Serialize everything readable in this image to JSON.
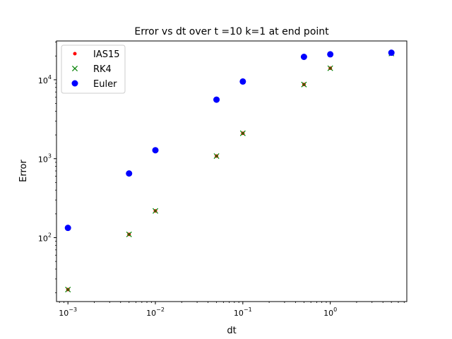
{
  "chart_data": {
    "type": "scatter",
    "title": "Error vs dt over t =10 k=1 at end point",
    "xlabel": "dt",
    "ylabel": "Error",
    "xscale": "log",
    "yscale": "log",
    "xlim": [
      0.00074,
      7.5
    ],
    "ylim": [
      15.5,
      31000
    ],
    "grid": false,
    "legend_position": "top-left",
    "x_ticks": [
      {
        "value": 0.001,
        "mantissa": "10",
        "exponent": "−3"
      },
      {
        "value": 0.01,
        "mantissa": "10",
        "exponent": "−2"
      },
      {
        "value": 0.1,
        "mantissa": "10",
        "exponent": "−1"
      },
      {
        "value": 1,
        "mantissa": "10",
        "exponent": "0"
      }
    ],
    "y_ticks": [
      {
        "value": 100,
        "mantissa": "10",
        "exponent": "2"
      },
      {
        "value": 1000,
        "mantissa": "10",
        "exponent": "3"
      },
      {
        "value": 10000,
        "mantissa": "10",
        "exponent": "4"
      }
    ],
    "series": [
      {
        "name": "IAS15",
        "marker": "dot",
        "color": "#ff0000",
        "x": [
          0.001,
          0.005,
          0.01,
          0.05,
          0.1,
          0.5,
          1,
          5
        ],
        "y": [
          22,
          110,
          218,
          1080,
          2100,
          8700,
          14000,
          21500
        ]
      },
      {
        "name": "RK4",
        "marker": "x",
        "color": "#008000",
        "x": [
          0.001,
          0.005,
          0.01,
          0.05,
          0.1,
          0.5,
          1,
          5
        ],
        "y": [
          22,
          110,
          218,
          1080,
          2100,
          8700,
          14000,
          21500
        ]
      },
      {
        "name": "Euler",
        "marker": "circle",
        "color": "#0000ff",
        "x": [
          0.001,
          0.005,
          0.01,
          0.05,
          0.1,
          0.5,
          1,
          5
        ],
        "y": [
          133,
          650,
          1280,
          5600,
          9500,
          19500,
          21000,
          22000
        ]
      }
    ]
  }
}
